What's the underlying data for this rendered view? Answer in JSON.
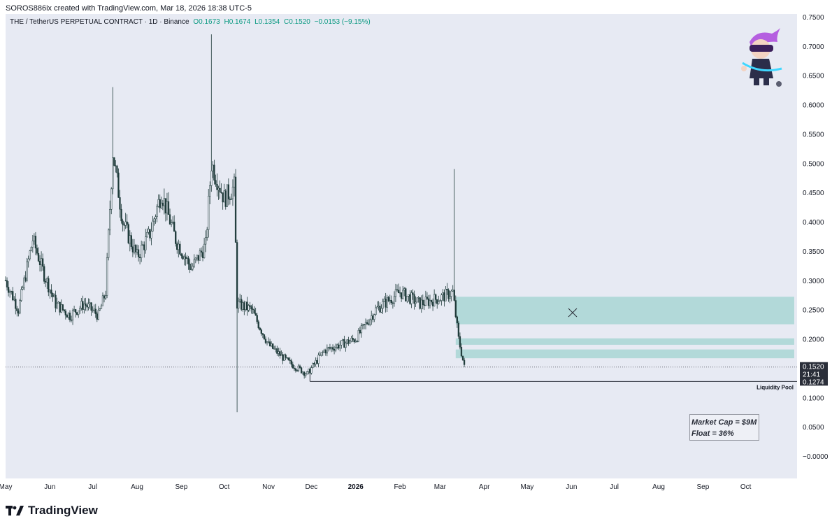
{
  "header": {
    "attribution": "SOROS886ix created with TradingView.com, Mar 18, 2026 18:38 UTC-5"
  },
  "legend": {
    "symbol": "THE / TetherUS PERPETUAL CONTRACT · 1D · Binance",
    "open": "O0.1673",
    "high": "H0.1674",
    "low": "L0.1354",
    "close": "C0.1520",
    "change": "−0.0153 (−9.15%)"
  },
  "annotations": {
    "liquidity_label": "Liquidity Pool",
    "market_cap": "Market Cap = $9M",
    "float": "Float = 36%"
  },
  "footer": {
    "brand": "TradingView"
  },
  "colors": {
    "background": "#e7eaf3",
    "candle": "#1f3b3a",
    "zone": "#b2d9d9",
    "price_tag": "#2a2e39"
  },
  "chart_data": {
    "type": "candlestick",
    "x_ticks": [
      "May",
      "Jun",
      "Jul",
      "Aug",
      "Sep",
      "Oct",
      "Nov",
      "Dec",
      "2026",
      "Feb",
      "Mar",
      "Apr",
      "May",
      "Jun",
      "Jul",
      "Aug",
      "Sep",
      "Oct"
    ],
    "y_ticks": [
      "0.7500",
      "0.7000",
      "0.6500",
      "0.6000",
      "0.5500",
      "0.5000",
      "0.4500",
      "0.4000",
      "0.3500",
      "0.3000",
      "0.2500",
      "0.2000",
      "0.1500",
      "0.1000",
      "0.0500",
      "−0.0000"
    ],
    "ylim": [
      -0.02,
      0.77
    ],
    "series_points": [
      {
        "date": "2025-05-01",
        "price": 0.3
      },
      {
        "date": "2025-05-10",
        "price": 0.25
      },
      {
        "date": "2025-05-20",
        "price": 0.37
      },
      {
        "date": "2025-05-28",
        "price": 0.31
      },
      {
        "date": "2025-06-05",
        "price": 0.26
      },
      {
        "date": "2025-06-15",
        "price": 0.24
      },
      {
        "date": "2025-06-25",
        "price": 0.26
      },
      {
        "date": "2025-07-05",
        "price": 0.24
      },
      {
        "date": "2025-07-10",
        "price": 0.28
      },
      {
        "date": "2025-07-15",
        "price": 0.52
      },
      {
        "date": "2025-07-22",
        "price": 0.4
      },
      {
        "date": "2025-08-01",
        "price": 0.34
      },
      {
        "date": "2025-08-10",
        "price": 0.38
      },
      {
        "date": "2025-08-18",
        "price": 0.45
      },
      {
        "date": "2025-08-28",
        "price": 0.37
      },
      {
        "date": "2025-09-08",
        "price": 0.32
      },
      {
        "date": "2025-09-18",
        "price": 0.36
      },
      {
        "date": "2025-09-22",
        "price": 0.5
      },
      {
        "date": "2025-10-01",
        "price": 0.44
      },
      {
        "date": "2025-10-08",
        "price": 0.46
      },
      {
        "date": "2025-10-10",
        "price": 0.26
      },
      {
        "date": "2025-10-20",
        "price": 0.25
      },
      {
        "date": "2025-11-01",
        "price": 0.19
      },
      {
        "date": "2025-11-15",
        "price": 0.16
      },
      {
        "date": "2025-11-28",
        "price": 0.14
      },
      {
        "date": "2025-12-10",
        "price": 0.18
      },
      {
        "date": "2026-01-01",
        "price": 0.2
      },
      {
        "date": "2026-01-15",
        "price": 0.25
      },
      {
        "date": "2026-02-01",
        "price": 0.28
      },
      {
        "date": "2026-02-15",
        "price": 0.26
      },
      {
        "date": "2026-03-01",
        "price": 0.27
      },
      {
        "date": "2026-03-10",
        "price": 0.28
      },
      {
        "date": "2026-03-14",
        "price": 0.2
      },
      {
        "date": "2026-03-18",
        "price": 0.152
      }
    ],
    "wicks": [
      {
        "date": "2025-07-15",
        "high": 0.63
      },
      {
        "date": "2025-09-22",
        "high": 0.72
      },
      {
        "date": "2025-10-10",
        "low": 0.075
      },
      {
        "date": "2026-03-11",
        "high": 0.49
      }
    ],
    "zones": [
      {
        "from": "2026-03-12",
        "to": "2026-10-30",
        "low": 0.225,
        "high": 0.272
      },
      {
        "from": "2026-03-12",
        "to": "2026-10-30",
        "low": 0.19,
        "high": 0.201
      },
      {
        "from": "2026-03-12",
        "to": "2026-10-30",
        "low": 0.167,
        "high": 0.182
      }
    ],
    "current_price": {
      "value": 0.152,
      "label": "0.1520",
      "countdown": "21:41"
    },
    "liquidity_level": {
      "value": 0.1274,
      "label": "0.1274",
      "from": "2025-11-30"
    }
  }
}
